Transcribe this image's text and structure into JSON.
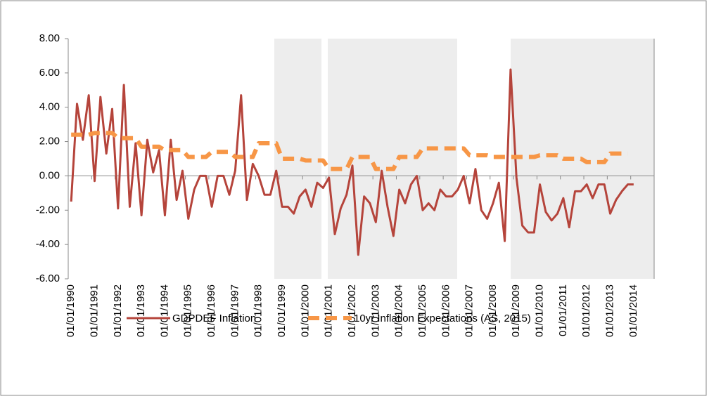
{
  "chart_data": {
    "type": "line",
    "categories": [
      "01/01/1990",
      null,
      null,
      null,
      "01/01/1991",
      null,
      null,
      null,
      "01/01/1992",
      null,
      null,
      null,
      "01/01/1993",
      null,
      null,
      null,
      "01/01/1994",
      null,
      null,
      null,
      "01/01/1995",
      null,
      null,
      null,
      "01/01/1996",
      null,
      null,
      null,
      "01/01/1997",
      null,
      null,
      null,
      "01/01/1998",
      null,
      null,
      null,
      "01/01/1999",
      null,
      null,
      null,
      "01/01/2000",
      null,
      null,
      null,
      "01/01/2001",
      null,
      null,
      null,
      "01/01/2002",
      null,
      null,
      null,
      "01/01/2003",
      null,
      null,
      null,
      "01/01/2004",
      null,
      null,
      null,
      "01/01/2005",
      null,
      null,
      null,
      "01/01/2006",
      null,
      null,
      null,
      "01/01/2007",
      null,
      null,
      null,
      "01/01/2008",
      null,
      null,
      null,
      "01/01/2009",
      null,
      null,
      null,
      "01/01/2010",
      null,
      null,
      null,
      "01/01/2011",
      null,
      null,
      null,
      "01/01/2012",
      null,
      null,
      null,
      "01/01/2013",
      null,
      null,
      null,
      "01/01/2014",
      null,
      null,
      null
    ],
    "series": [
      {
        "name": "GDPDEF Inflation",
        "color": "#b5443b",
        "values": [
          -1.5,
          4.2,
          2.1,
          4.7,
          -0.3,
          4.6,
          1.3,
          3.9,
          -1.9,
          5.3,
          -1.8,
          1.9,
          -2.3,
          2.1,
          0.2,
          1.5,
          -2.3,
          2.1,
          -1.4,
          0.3,
          -2.5,
          -0.8,
          0.0,
          0.0,
          -1.8,
          0.0,
          0.0,
          -1.1,
          0.3,
          4.7,
          -1.4,
          0.7,
          0.0,
          -1.1,
          -1.1,
          0.3,
          -1.8,
          -1.8,
          -2.2,
          -1.2,
          -0.8,
          -1.8,
          -0.4,
          -0.7,
          -0.1,
          -3.4,
          -1.9,
          -1.1,
          0.6,
          -4.6,
          -1.2,
          -1.6,
          -2.7,
          0.3,
          -1.8,
          -3.5,
          -0.8,
          -1.6,
          -0.5,
          0.0,
          -2.0,
          -1.6,
          -2.0,
          -0.8,
          -1.2,
          -1.2,
          -0.8,
          0.0,
          -1.6,
          0.4,
          -2.0,
          -2.5,
          -1.6,
          -0.4,
          -3.8,
          6.2,
          -0.1,
          -2.9,
          -3.3,
          -3.3,
          -0.5,
          -2.1,
          -2.6,
          -2.2,
          -1.3,
          -3.0,
          -0.9,
          -0.9,
          -0.5,
          -1.3,
          -0.5,
          -0.5,
          -2.2,
          -1.4,
          -0.9,
          -0.5,
          -0.5,
          null,
          null,
          null
        ]
      },
      {
        "name": "10yr Inflation Expectations (AS, 2015)",
        "color": "#f79646",
        "values": [
          2.4,
          2.4,
          2.4,
          2.4,
          2.5,
          2.5,
          2.5,
          2.5,
          2.2,
          2.2,
          2.2,
          2.2,
          1.7,
          1.7,
          1.7,
          1.7,
          1.5,
          1.5,
          1.5,
          1.5,
          1.1,
          1.1,
          1.1,
          1.1,
          1.4,
          1.4,
          1.4,
          1.4,
          1.1,
          1.1,
          1.1,
          1.1,
          1.9,
          1.9,
          1.9,
          1.9,
          1.0,
          1.0,
          1.0,
          1.0,
          0.9,
          0.9,
          0.9,
          0.9,
          0.4,
          0.4,
          0.4,
          0.4,
          1.1,
          1.1,
          1.1,
          1.1,
          0.4,
          0.4,
          0.4,
          0.4,
          1.1,
          1.1,
          1.1,
          1.1,
          1.6,
          1.6,
          1.6,
          1.6,
          1.6,
          1.6,
          1.6,
          1.6,
          1.2,
          1.2,
          1.2,
          1.2,
          1.1,
          1.1,
          1.1,
          1.1,
          1.1,
          1.1,
          1.1,
          1.1,
          1.2,
          1.2,
          1.2,
          1.2,
          1.0,
          1.0,
          1.0,
          1.0,
          0.8,
          0.8,
          0.8,
          0.8,
          1.3,
          1.3,
          1.3,
          1.3,
          null,
          null,
          null,
          null
        ]
      }
    ],
    "ylim": [
      -6,
      8
    ],
    "yticks": [
      {
        "value": -6,
        "label": "-6.00"
      },
      {
        "value": -4,
        "label": "-4.00"
      },
      {
        "value": -2,
        "label": "-2.00"
      },
      {
        "value": 0,
        "label": "0.00"
      },
      {
        "value": 2,
        "label": "2.00"
      },
      {
        "value": 4,
        "label": "4.00"
      },
      {
        "value": 6,
        "label": "6.00"
      },
      {
        "value": 8,
        "label": "8.00"
      }
    ],
    "legend": "bottom"
  }
}
